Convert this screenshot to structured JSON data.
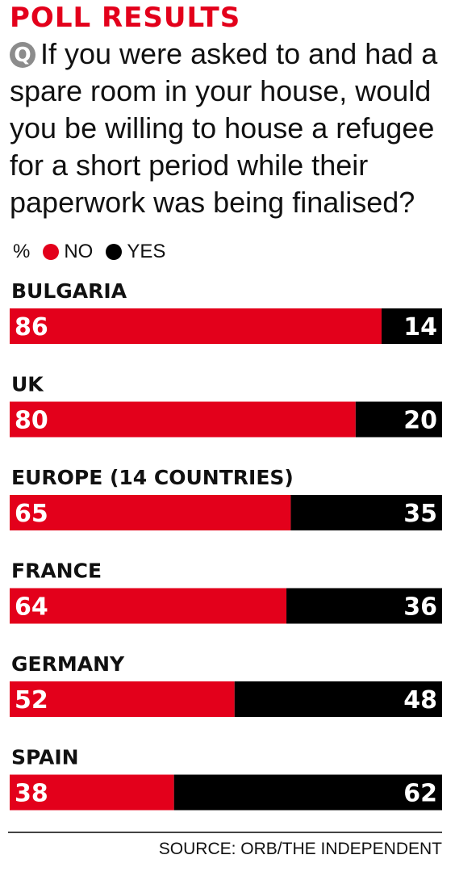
{
  "title": "POLL RESULTS",
  "question": {
    "mark": "Q",
    "text": "If you were asked to and had a spare room in your house, would you be willing to house a refugee for a short period while their paperwork was being finalised?"
  },
  "legend": {
    "unit": "%",
    "items": [
      {
        "label": "NO",
        "color": "#e3001b"
      },
      {
        "label": "YES",
        "color": "#000000"
      }
    ]
  },
  "chart_data": {
    "type": "bar",
    "orientation": "horizontal-stacked-100",
    "categories": [
      "BULGARIA",
      "UK",
      "EUROPE (14 COUNTRIES)",
      "FRANCE",
      "GERMANY",
      "SPAIN"
    ],
    "series": [
      {
        "name": "NO",
        "color": "#e3001b",
        "values": [
          86,
          80,
          65,
          64,
          52,
          38
        ]
      },
      {
        "name": "YES",
        "color": "#000000",
        "values": [
          14,
          20,
          35,
          36,
          48,
          62
        ]
      }
    ],
    "ylabel": "%",
    "xlim": [
      0,
      100
    ]
  },
  "source": "SOURCE: ORB/THE INDEPENDENT"
}
